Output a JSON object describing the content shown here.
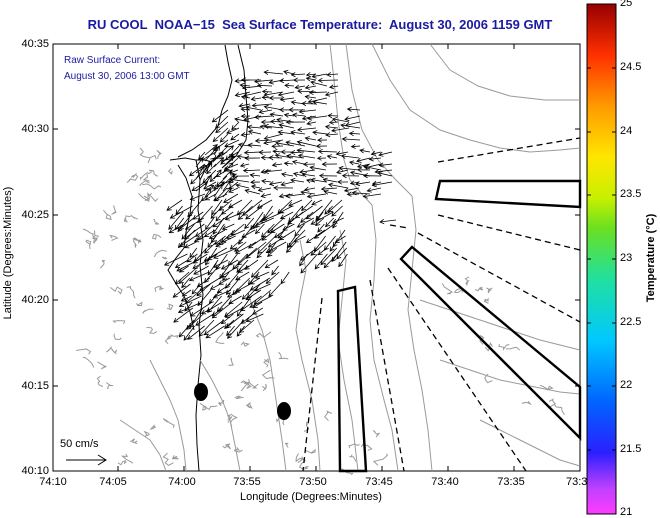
{
  "title": "RU COOL  NOAA−15  Sea Surface Temperature:  August 30, 2006 1159 GMT",
  "current_note": {
    "line1": "Raw Surface Current:",
    "line2": "August 30, 2006 13:00 GMT"
  },
  "scale_label": "50 cm/s",
  "axes": {
    "xlabel": "Longitude (Degrees:Minutes)",
    "ylabel": "Latitude (Degrees:Minutes)",
    "xticks": [
      "74:10",
      "74:05",
      "74:00",
      "73:55",
      "73:50",
      "73:45",
      "73:40",
      "73:35",
      "73:3"
    ],
    "yticks": [
      "40:35",
      "40:30",
      "40:25",
      "40:20",
      "40:15",
      "40:10"
    ]
  },
  "colorbar": {
    "label": "Temperature (°C)",
    "ticks": [
      "25",
      "24.5",
      "24",
      "23.5",
      "23",
      "22.5",
      "22",
      "21.5",
      "21"
    ],
    "min": 21,
    "max": 25
  },
  "colors": {
    "title": "#1a1aa0",
    "note": "#1a1aa0",
    "contour": "#9a9a9a"
  }
}
